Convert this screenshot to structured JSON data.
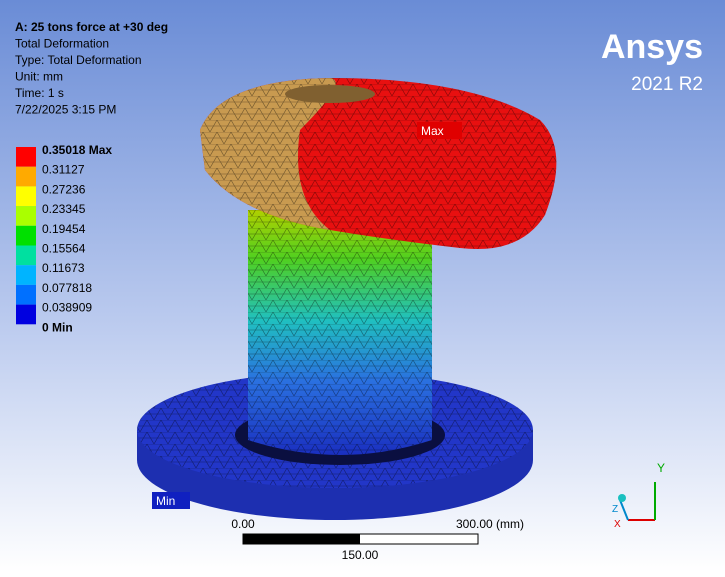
{
  "header": {
    "lines": [
      "A: 25 tons force at +30 deg",
      "Total Deformation",
      "Type: Total Deformation",
      "Unit: mm",
      "Time: 1 s",
      "7/22/2025 3:15 PM"
    ]
  },
  "logo": {
    "brand": "Ansys",
    "version": "2021 R2"
  },
  "legend": {
    "labels": [
      "0.35018 Max",
      "0.31127",
      "0.27236",
      "0.23345",
      "0.19454",
      "0.15564",
      "0.11673",
      "0.077818",
      "0.038909",
      "0 Min"
    ],
    "colors": [
      "#ff0000",
      "#ffaa00",
      "#ffff00",
      "#aaff00",
      "#00e000",
      "#00e0a0",
      "#00b4ff",
      "#0070ff",
      "#0000e0"
    ]
  },
  "probes": {
    "max": "Max",
    "min": "Min"
  },
  "scale_bar": {
    "start": "0.00",
    "end": "300.00 (mm)",
    "middle": "150.00"
  },
  "triad": {
    "y": "Y",
    "x": "X",
    "z": "Z"
  }
}
